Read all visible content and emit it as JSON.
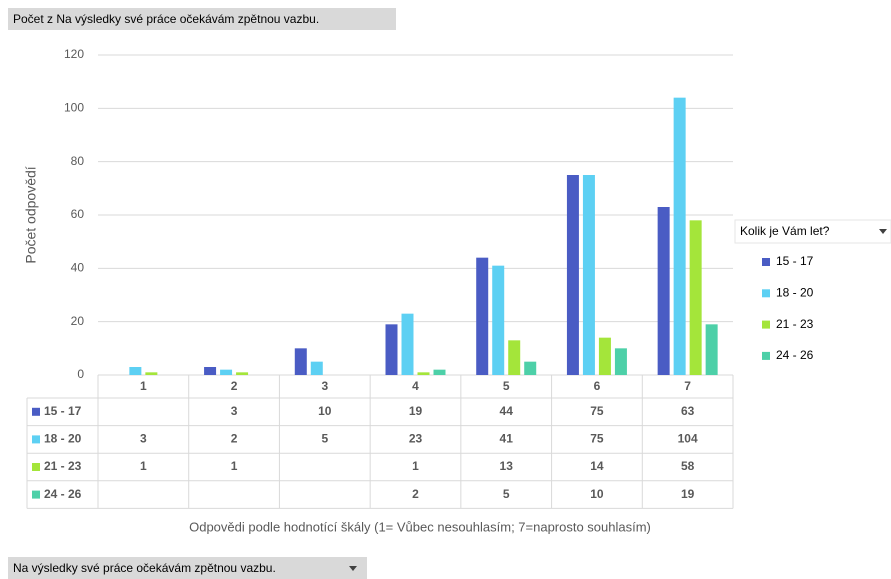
{
  "chart_data": {
    "type": "bar",
    "title": "Počet z Na výsledky své práce očekávám zpětnou vazbu.",
    "y_label": "Počet odpovědí",
    "x_label": "Odpovědi podle hodnotící škály (1= Vůbec nesouhlasím; 7=naprosto souhlasím)",
    "legend_title": "Kolik je Vám let?",
    "categories": [
      "1",
      "2",
      "3",
      "4",
      "5",
      "6",
      "7"
    ],
    "series": [
      {
        "name": "15 - 17",
        "color": "#4a5cc4",
        "values": [
          null,
          3,
          10,
          19,
          44,
          75,
          63
        ]
      },
      {
        "name": "18 - 20",
        "color": "#5dd0f3",
        "values": [
          3,
          2,
          5,
          23,
          41,
          75,
          104
        ]
      },
      {
        "name": "21 - 23",
        "color": "#a4e53a",
        "values": [
          1,
          1,
          null,
          1,
          13,
          14,
          58
        ]
      },
      {
        "name": "24 - 26",
        "color": "#4dd0a8",
        "values": [
          null,
          null,
          null,
          2,
          5,
          10,
          19
        ]
      }
    ],
    "ylim": [
      0,
      120
    ],
    "yticks": [
      0,
      20,
      40,
      60,
      80,
      100,
      120
    ],
    "grid": true,
    "legend": "right"
  },
  "filter_button": "Na výsledky své práce očekávám zpětnou vazbu."
}
